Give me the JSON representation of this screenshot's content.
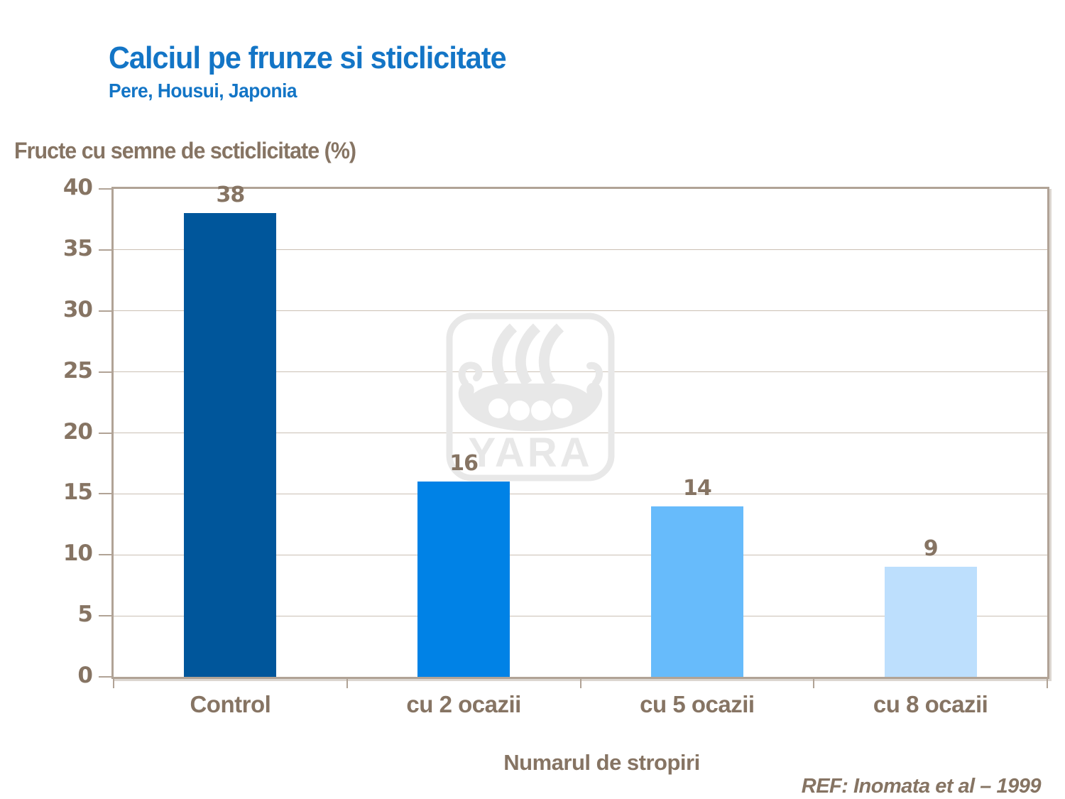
{
  "slide": {
    "title": "Calciul pe frunze si sticlicitate",
    "subtitle": "Pere, Housui, Japonia",
    "reference": "REF: Inomata et al – 1999"
  },
  "watermark": {
    "label": "YARA",
    "icon": "yara-viking-ship-logo"
  },
  "colors": {
    "title_blue": "#1375c6",
    "label_brown": "#867463",
    "axis_line": "#b1a396",
    "gridline": "#cbc0b4",
    "watermark_gray": "#e8e8e8",
    "background": "#ffffff"
  },
  "chart_data": {
    "type": "bar",
    "title": "Calciul pe frunze si sticlicitate",
    "subtitle": "Pere, Housui, Japonia",
    "ylabel": "Fructe cu semne de scticlicitate (%)",
    "xlabel": "Numarul de stropiri",
    "categories": [
      "Control",
      "cu 2 ocazii",
      "cu 5 ocazii",
      "cu 8 ocazii"
    ],
    "values": [
      38,
      16,
      14,
      9
    ],
    "data_labels": [
      "38",
      "16",
      "14",
      "9"
    ],
    "bar_colors": [
      "#00569b",
      "#0082e6",
      "#67bbfb",
      "#bddffd"
    ],
    "ylim": [
      0,
      40
    ],
    "ytick_step": 5,
    "grid": true,
    "legend": false
  }
}
